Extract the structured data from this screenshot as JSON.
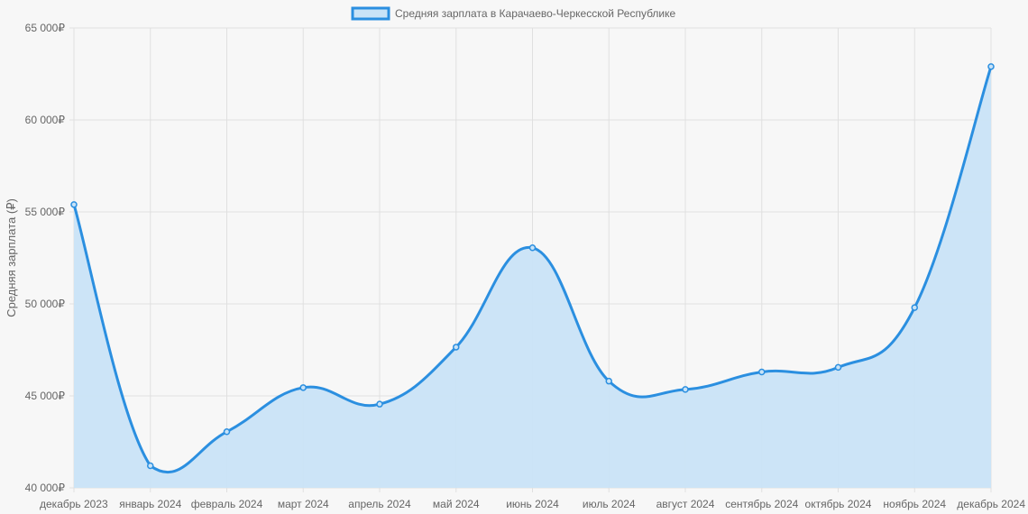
{
  "chart_data": {
    "type": "area",
    "title": "",
    "xlabel": "",
    "ylabel": "Средняя зарплата (₽)",
    "legend_position": "top-center",
    "grid": true,
    "ylim": [
      40000,
      65000
    ],
    "y_ticks": [
      40000,
      45000,
      50000,
      55000,
      60000,
      65000
    ],
    "y_tick_labels": [
      "40 000₽",
      "45 000₽",
      "50 000₽",
      "55 000₽",
      "60 000₽",
      "65 000₽"
    ],
    "categories": [
      "декабрь 2023",
      "январь 2024",
      "февраль 2024",
      "март 2024",
      "апрель 2024",
      "май 2024",
      "июнь 2024",
      "июль 2024",
      "август 2024",
      "сентябрь 2024",
      "октябрь 2024",
      "ноябрь 2024",
      "декабрь 2024"
    ],
    "series": [
      {
        "name": "Средняя зарплата в Карачаево-Черкесской Республике",
        "values": [
          55400,
          41200,
          43050,
          45450,
          44550,
          47650,
          53050,
          45800,
          45350,
          46300,
          46550,
          49800,
          62900
        ]
      }
    ],
    "colors": {
      "line": "#2b8fe0",
      "fill": "#c9e3f7",
      "grid": "#e0e0e0",
      "background": "#f7f7f7"
    }
  }
}
